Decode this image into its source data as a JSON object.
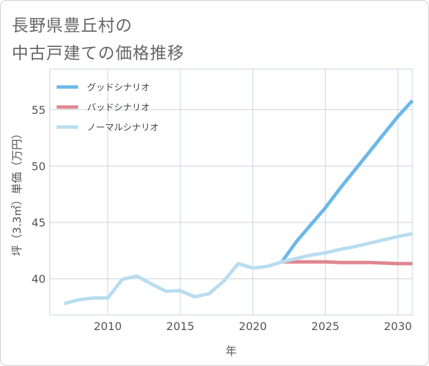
{
  "title": {
    "line1": "長野県豊丘村の",
    "line2": "中古戸建ての価格推移"
  },
  "chart_data": {
    "type": "line",
    "xlabel": "年",
    "ylabel": "坪（3.3㎡）単価（万円）",
    "xlim": [
      2006,
      2031
    ],
    "ylim": [
      36.8,
      58.6
    ],
    "x_ticks": [
      2010,
      2015,
      2020,
      2025,
      2030
    ],
    "y_ticks": [
      40,
      45,
      50,
      55
    ],
    "grid": true,
    "legend_position": "top-left",
    "series": [
      {
        "name": "グッドシナリオ",
        "color": "#6cb8e8",
        "x": [
          2022,
          2023,
          2024,
          2025,
          2026,
          2027,
          2028,
          2029,
          2030,
          2031
        ],
        "values": [
          41.5,
          43.3,
          44.8,
          46.3,
          48.0,
          49.6,
          51.2,
          52.8,
          54.4,
          55.8
        ]
      },
      {
        "name": "バッドシナリオ",
        "color": "#e0868f",
        "x": [
          2022,
          2023,
          2024,
          2025,
          2026,
          2027,
          2028,
          2029,
          2030,
          2031
        ],
        "values": [
          41.5,
          41.5,
          41.5,
          41.5,
          41.45,
          41.45,
          41.45,
          41.4,
          41.35,
          41.35
        ]
      },
      {
        "name": "ノーマルシナリオ",
        "color": "#b9ddef",
        "x": [
          2007,
          2008,
          2009,
          2010,
          2011,
          2012,
          2013,
          2014,
          2015,
          2016,
          2017,
          2018,
          2019,
          2020,
          2021,
          2022,
          2023,
          2024,
          2025,
          2026,
          2027,
          2028,
          2029,
          2030,
          2031
        ],
        "values": [
          37.8,
          38.15,
          38.3,
          38.3,
          39.95,
          40.25,
          39.55,
          38.9,
          38.95,
          38.4,
          38.7,
          39.8,
          41.35,
          40.95,
          41.1,
          41.5,
          41.8,
          42.1,
          42.3,
          42.6,
          42.85,
          43.15,
          43.45,
          43.75,
          44.0
        ]
      }
    ]
  }
}
